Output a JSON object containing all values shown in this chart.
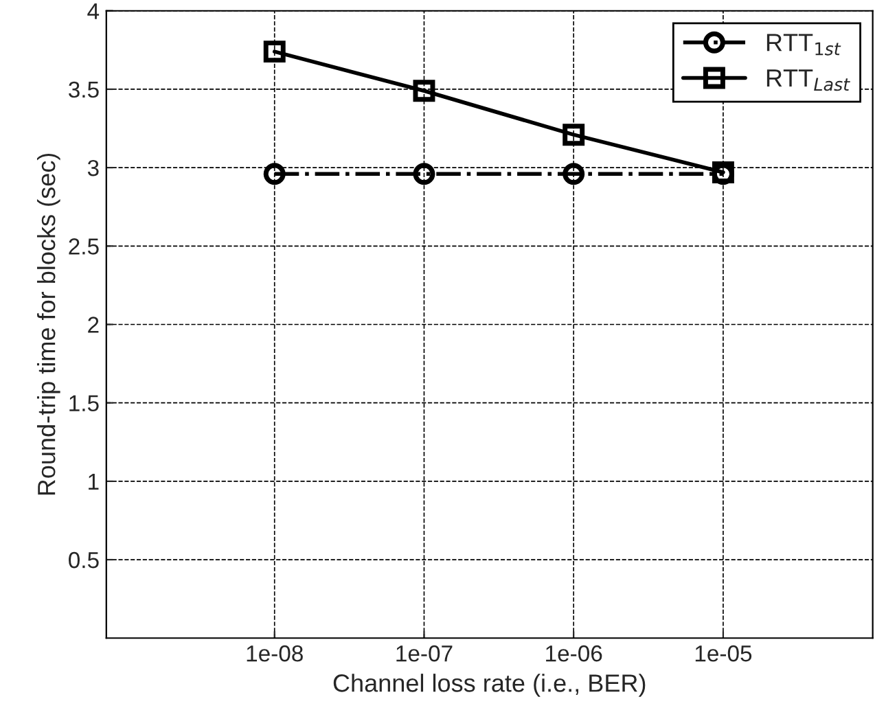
{
  "chart_data": {
    "type": "line",
    "xlabel": "Channel loss rate (i.e., BER)",
    "ylabel": "Round-trip time for blocks (sec)",
    "x": [
      1e-08,
      1e-07,
      1e-06,
      1e-05
    ],
    "series": [
      {
        "name": "RTT$_{1st}$",
        "color": "#000000",
        "values": [
          2.96,
          2.96,
          2.96,
          2.96
        ],
        "marker": "circle",
        "line_style": "dashdot"
      },
      {
        "name": "RTT$_{Last}$",
        "color": "#000000",
        "values": [
          3.74,
          3.49,
          3.21,
          2.97
        ],
        "marker": "square",
        "line_style": "solid"
      }
    ],
    "log": "x",
    "xlim": [
      7.5e-10,
      0.0001
    ],
    "xticks": [
      {
        "value": 1e-08,
        "label": "1e-08"
      },
      {
        "value": 1e-07,
        "label": "1e-07"
      },
      {
        "value": 1e-06,
        "label": "1e-06"
      },
      {
        "value": 1e-05,
        "label": "1e-05"
      }
    ],
    "ylim": [
      0,
      4
    ],
    "yticks": [
      0.5,
      1,
      1.5,
      2,
      2.5,
      3,
      3.5,
      4
    ],
    "grid": true,
    "legend": "top right"
  }
}
